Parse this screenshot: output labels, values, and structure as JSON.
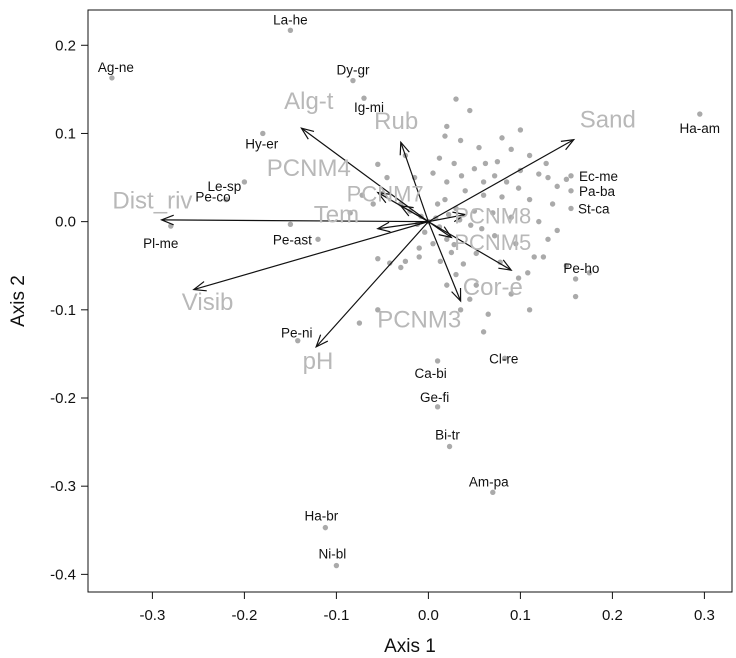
{
  "chart_data": {
    "type": "scatter",
    "title": "",
    "xlabel": "Axis 1",
    "ylabel": "Axis 2",
    "xlim": [
      -0.37,
      0.33
    ],
    "ylim": [
      -0.42,
      0.24
    ],
    "xticks": [
      -0.3,
      -0.2,
      -0.1,
      0.0,
      0.1,
      0.2,
      0.3
    ],
    "xtick_labels": [
      "-0.3",
      "-0.2",
      "-0.1",
      "0.0",
      "0.1",
      "0.2",
      "0.3"
    ],
    "yticks": [
      -0.4,
      -0.3,
      -0.2,
      -0.1,
      0.0,
      0.1,
      0.2
    ],
    "ytick_labels": [
      "-0.4",
      "-0.3",
      "-0.2",
      "-0.1",
      "0.0",
      "0.1",
      "0.2"
    ],
    "grid": false,
    "point_color": "#aaaaaa",
    "arrow_color": "#111111",
    "env_label_color": "#b8b8b8",
    "labeled_points": [
      {
        "label": "La-he",
        "x": -0.15,
        "y": 0.217
      },
      {
        "label": "Ag-ne",
        "x": -0.344,
        "y": 0.163
      },
      {
        "label": "Dy-gr",
        "x": -0.082,
        "y": 0.16
      },
      {
        "label": "Ig-mi",
        "x": -0.07,
        "y": 0.14
      },
      {
        "label": "Ha-am",
        "x": 0.295,
        "y": 0.122
      },
      {
        "label": "Hy-er",
        "x": -0.18,
        "y": 0.1
      },
      {
        "label": "Ec-me",
        "x": 0.155,
        "y": 0.052
      },
      {
        "label": "Le-sp",
        "x": -0.2,
        "y": 0.045
      },
      {
        "label": "Pa-ba",
        "x": 0.155,
        "y": 0.035
      },
      {
        "label": "Pe-co",
        "x": -0.22,
        "y": 0.025
      },
      {
        "label": "St-ca",
        "x": 0.155,
        "y": 0.015
      },
      {
        "label": "Pl-me",
        "x": -0.28,
        "y": -0.005
      },
      {
        "label": "Pe-ast",
        "x": -0.15,
        "y": -0.003
      },
      {
        "label": "Pe-ho",
        "x": 0.175,
        "y": -0.058
      },
      {
        "label": "Pe-ni",
        "x": -0.142,
        "y": -0.135
      },
      {
        "label": "Ca-bi",
        "x": 0.01,
        "y": -0.158
      },
      {
        "label": "Cl-re",
        "x": 0.083,
        "y": -0.155
      },
      {
        "label": "Ge-fi",
        "x": 0.01,
        "y": -0.21
      },
      {
        "label": "Bi-tr",
        "x": 0.023,
        "y": -0.255
      },
      {
        "label": "Am-pa",
        "x": 0.07,
        "y": -0.307
      },
      {
        "label": "Ha-br",
        "x": -0.112,
        "y": -0.347
      },
      {
        "label": "Ni-bl",
        "x": -0.1,
        "y": -0.39
      }
    ],
    "unlabeled_points": [
      [
        0.03,
        0.139
      ],
      [
        0.045,
        0.126
      ],
      [
        0.018,
        0.097
      ],
      [
        0.1,
        0.104
      ],
      [
        0.055,
        0.084
      ],
      [
        0.075,
        0.068
      ],
      [
        0.1,
        0.058
      ],
      [
        0.12,
        0.054
      ],
      [
        0.13,
        0.05
      ],
      [
        0.14,
        0.04
      ],
      [
        0.15,
        0.048
      ],
      [
        0.005,
        0.055
      ],
      [
        0.02,
        0.045
      ],
      [
        0.04,
        0.035
      ],
      [
        0.06,
        0.03
      ],
      [
        0.08,
        0.028
      ],
      [
        0.11,
        0.025
      ],
      [
        0.135,
        0.02
      ],
      [
        0.018,
        0.025
      ],
      [
        0.03,
        0.015
      ],
      [
        0.05,
        0.012
      ],
      [
        0.07,
        0.01
      ],
      [
        0.09,
        0.005
      ],
      [
        0.12,
        0.0
      ],
      [
        0.14,
        -0.01
      ],
      [
        0.01,
        0.02
      ],
      [
        0.022,
        0.008
      ],
      [
        0.034,
        0.002
      ],
      [
        0.046,
        -0.004
      ],
      [
        0.058,
        -0.008
      ],
      [
        0.072,
        -0.016
      ],
      [
        0.095,
        -0.025
      ],
      [
        0.125,
        -0.04
      ],
      [
        0.15,
        -0.05
      ],
      [
        0.16,
        -0.065
      ],
      [
        0.16,
        -0.085
      ],
      [
        0.09,
        -0.082
      ],
      [
        0.052,
        -0.072
      ],
      [
        0.03,
        -0.06
      ],
      [
        0.013,
        -0.045
      ],
      [
        -0.01,
        -0.04
      ],
      [
        -0.025,
        -0.045
      ],
      [
        -0.03,
        -0.052
      ],
      [
        -0.042,
        -0.047
      ],
      [
        -0.055,
        -0.042
      ],
      [
        -0.01,
        -0.03
      ],
      [
        0.005,
        -0.025
      ],
      [
        0.02,
        -0.02
      ],
      [
        -0.004,
        -0.012
      ],
      [
        -0.012,
        -0.003
      ],
      [
        -0.008,
        0.006
      ],
      [
        0.0,
        0.0
      ],
      [
        0.008,
        0.004
      ],
      [
        0.012,
        -0.006
      ],
      [
        -0.02,
        0.012
      ],
      [
        -0.03,
        0.02
      ],
      [
        -0.05,
        0.032
      ],
      [
        -0.055,
        0.065
      ],
      [
        -0.045,
        0.05
      ],
      [
        -0.06,
        0.02
      ],
      [
        -0.072,
        0.03
      ],
      [
        -0.085,
        0.01
      ],
      [
        -0.12,
        -0.02
      ],
      [
        -0.055,
        -0.1
      ],
      [
        -0.075,
        -0.115
      ],
      [
        0.035,
        -0.1
      ],
      [
        0.065,
        -0.105
      ],
      [
        0.06,
        -0.125
      ],
      [
        0.045,
        -0.088
      ],
      [
        0.108,
        -0.058
      ],
      [
        0.115,
        -0.04
      ],
      [
        0.13,
        -0.02
      ],
      [
        0.06,
        0.045
      ],
      [
        0.072,
        0.052
      ],
      [
        0.085,
        0.045
      ],
      [
        0.098,
        0.038
      ],
      [
        0.028,
        0.066
      ],
      [
        0.036,
        0.052
      ],
      [
        0.05,
        0.06
      ],
      [
        0.062,
        0.066
      ],
      [
        0.012,
        0.072
      ],
      [
        -0.015,
        0.05
      ],
      [
        -0.025,
        0.075
      ],
      [
        0.02,
        0.108
      ],
      [
        0.035,
        0.092
      ],
      [
        0.08,
        0.095
      ],
      [
        0.09,
        0.082
      ],
      [
        0.11,
        0.075
      ],
      [
        0.128,
        0.066
      ],
      [
        0.025,
        -0.035
      ],
      [
        0.038,
        -0.048
      ],
      [
        0.028,
        -0.026
      ],
      [
        0.052,
        -0.036
      ],
      [
        0.078,
        -0.046
      ],
      [
        0.098,
        -0.064
      ],
      [
        0.11,
        -0.1
      ],
      [
        0.02,
        -0.072
      ]
    ],
    "vectors": [
      {
        "label": "Alg-t",
        "x": -0.138,
        "y": 0.106,
        "label_x": -0.13,
        "label_y": 0.128,
        "size": 24
      },
      {
        "label": "Rub",
        "x": -0.03,
        "y": 0.09,
        "label_x": -0.035,
        "label_y": 0.105,
        "size": 24
      },
      {
        "label": "Sand",
        "x": 0.158,
        "y": 0.093,
        "label_x": 0.195,
        "label_y": 0.107,
        "size": 24
      },
      {
        "label": "PCNM4",
        "x": -0.055,
        "y": 0.033,
        "label_x": -0.13,
        "label_y": 0.052,
        "size": 24
      },
      {
        "label": "PCNM7",
        "x": -0.03,
        "y": 0.018,
        "label_x": -0.047,
        "label_y": 0.023,
        "size": 22
      },
      {
        "label": "Dist_riv",
        "x": -0.29,
        "y": 0.002,
        "label_x": -0.3,
        "label_y": 0.015,
        "size": 24
      },
      {
        "label": "Tem",
        "x": -0.055,
        "y": -0.008,
        "label_x": -0.1,
        "label_y": -0.001,
        "size": 24
      },
      {
        "label": "PCNM8",
        "x": 0.04,
        "y": 0.008,
        "label_x": 0.07,
        "label_y": -0.002,
        "size": 22
      },
      {
        "label": "PCNM5",
        "x": 0.025,
        "y": -0.018,
        "label_x": 0.07,
        "label_y": -0.032,
        "size": 22
      },
      {
        "label": "Visib",
        "x": -0.255,
        "y": -0.077,
        "label_x": -0.24,
        "label_y": -0.1,
        "size": 24
      },
      {
        "label": "Cor-e",
        "x": 0.09,
        "y": -0.055,
        "label_x": 0.07,
        "label_y": -0.083,
        "size": 24
      },
      {
        "label": "PCNM3",
        "x": 0.035,
        "y": -0.09,
        "label_x": -0.01,
        "label_y": -0.12,
        "size": 24
      },
      {
        "label": "pH",
        "x": -0.122,
        "y": -0.142,
        "label_x": -0.12,
        "label_y": -0.167,
        "size": 24
      }
    ]
  }
}
